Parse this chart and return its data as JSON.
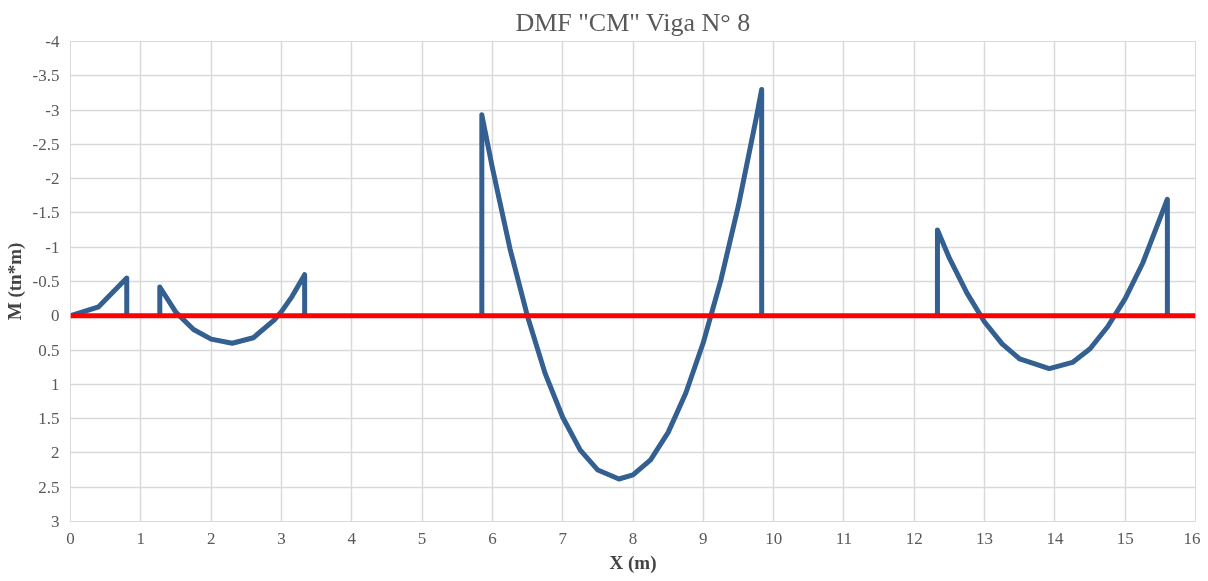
{
  "chart_data": {
    "type": "line",
    "title": "DMF \"CM\" Viga N° 8",
    "xlabel": "X (m)",
    "ylabel": "M (tn*m)",
    "xlim": [
      0,
      16
    ],
    "xticks": [
      0,
      1,
      2,
      3,
      4,
      5,
      6,
      7,
      8,
      9,
      10,
      11,
      12,
      13,
      14,
      15,
      16
    ],
    "ylim": [
      3,
      -4
    ],
    "yticks": [
      -4,
      -3.5,
      -3,
      -2.5,
      -2,
      -1.5,
      -1,
      -0.5,
      0,
      0.5,
      1,
      1.5,
      2,
      2.5,
      3
    ],
    "grid": true,
    "marker": "none",
    "line_style": "solid",
    "series": [
      {
        "color": "#335f91",
        "x": [
          0,
          0.4,
          0.8,
          0.8
        ],
        "values": [
          0,
          -0.13,
          -0.55,
          0
        ]
      },
      {
        "color": "#335f91",
        "x": [
          1.27,
          1.27,
          1.5,
          1.75,
          2.0,
          2.3,
          2.6,
          2.9,
          3.0,
          3.15,
          3.33,
          3.33
        ],
        "values": [
          0,
          -0.42,
          -0.05,
          0.2,
          0.34,
          0.4,
          0.32,
          0.06,
          -0.06,
          -0.28,
          -0.6,
          0
        ]
      },
      {
        "color": "#335f91",
        "x": [
          5.85,
          5.85,
          6.0,
          6.25,
          6.5,
          6.75,
          7.0,
          7.25,
          7.5,
          7.8,
          8.0,
          8.25,
          8.5,
          8.75,
          9.0,
          9.25,
          9.5,
          9.75,
          9.83,
          9.83
        ],
        "values": [
          0,
          -2.93,
          -2.16,
          -0.98,
          0.01,
          0.84,
          1.48,
          1.96,
          2.25,
          2.38,
          2.32,
          2.1,
          1.7,
          1.13,
          0.39,
          -0.52,
          -1.61,
          -2.87,
          -3.3,
          0
        ]
      },
      {
        "color": "#335f91",
        "x": [
          12.33,
          12.33,
          12.5,
          12.75,
          13.0,
          13.25,
          13.5,
          13.92,
          14.25,
          14.5,
          14.75,
          15.0,
          15.25,
          15.6,
          15.6
        ],
        "values": [
          0,
          -1.25,
          -0.84,
          -0.33,
          0.09,
          0.41,
          0.63,
          0.77,
          0.68,
          0.48,
          0.16,
          -0.25,
          -0.77,
          -1.7,
          0
        ]
      }
    ],
    "ref_lines": [
      {
        "axis": "y",
        "value": 0,
        "color": "#ff0000",
        "line_style": "solid"
      }
    ]
  }
}
